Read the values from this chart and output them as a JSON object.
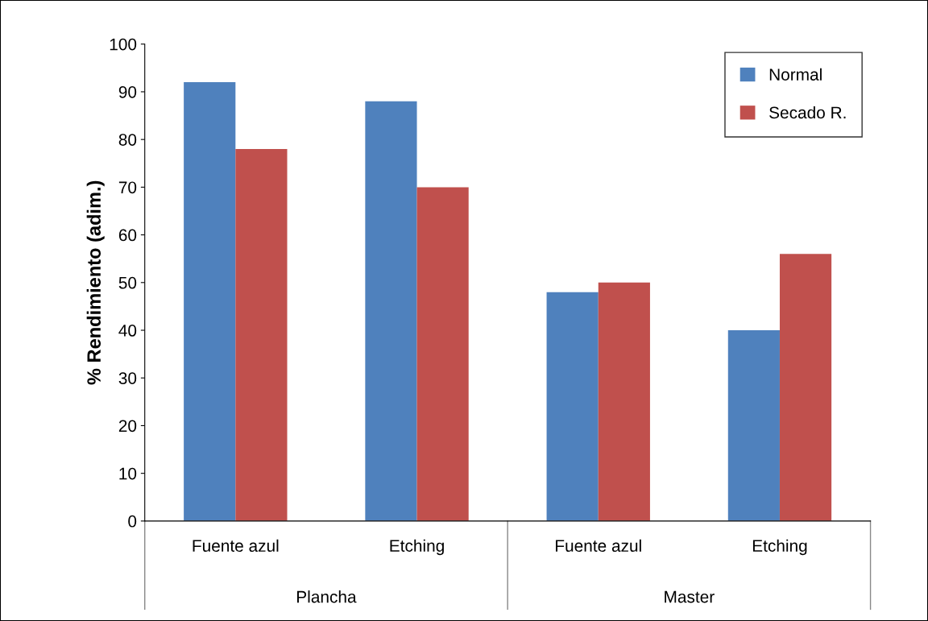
{
  "chart_data": {
    "type": "bar",
    "ylabel": "% Rendimiento (adim.)",
    "categories": [
      "Fuente azul",
      "Etching",
      "Fuente azul",
      "Etching"
    ],
    "annotations": [
      "Plancha",
      "Master"
    ],
    "series": [
      {
        "name": "Normal",
        "color": "#4f81bd",
        "values": [
          92,
          88,
          48,
          40
        ]
      },
      {
        "name": "Secado R.",
        "color": "#c0504d",
        "values": [
          78,
          70,
          50,
          56
        ]
      }
    ],
    "ylim": [
      0,
      100
    ],
    "yticks": [
      0,
      10,
      20,
      30,
      40,
      50,
      60,
      70,
      80,
      90,
      100
    ],
    "grid": false,
    "legend": "top right"
  }
}
